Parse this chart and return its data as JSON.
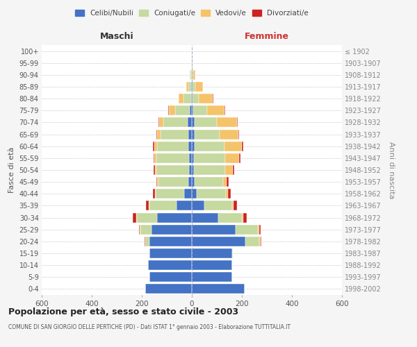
{
  "age_groups": [
    "0-4",
    "5-9",
    "10-14",
    "15-19",
    "20-24",
    "25-29",
    "30-34",
    "35-39",
    "40-44",
    "45-49",
    "50-54",
    "55-59",
    "60-64",
    "65-69",
    "70-74",
    "75-79",
    "80-84",
    "85-89",
    "90-94",
    "95-99",
    "100+"
  ],
  "birth_years": [
    "1998-2002",
    "1993-1997",
    "1988-1992",
    "1983-1987",
    "1978-1982",
    "1973-1977",
    "1968-1972",
    "1963-1967",
    "1958-1962",
    "1953-1957",
    "1948-1952",
    "1943-1947",
    "1938-1942",
    "1933-1937",
    "1928-1932",
    "1923-1927",
    "1918-1922",
    "1913-1917",
    "1908-1912",
    "1903-1907",
    "≤ 1902"
  ],
  "male": {
    "celibi": [
      185,
      170,
      175,
      170,
      170,
      160,
      140,
      60,
      30,
      14,
      12,
      12,
      14,
      15,
      18,
      8,
      4,
      2,
      1,
      0,
      0
    ],
    "coniugati": [
      0,
      0,
      0,
      0,
      15,
      45,
      80,
      110,
      115,
      120,
      130,
      130,
      125,
      110,
      95,
      60,
      30,
      12,
      4,
      1,
      0
    ],
    "vedovi": [
      0,
      0,
      0,
      0,
      2,
      2,
      2,
      2,
      2,
      4,
      5,
      8,
      12,
      14,
      18,
      25,
      20,
      8,
      2,
      0,
      0
    ],
    "divorziati": [
      0,
      0,
      0,
      0,
      3,
      5,
      14,
      10,
      8,
      5,
      5,
      4,
      4,
      3,
      2,
      2,
      0,
      0,
      0,
      0,
      0
    ]
  },
  "female": {
    "nubili": [
      210,
      160,
      160,
      160,
      215,
      175,
      105,
      50,
      20,
      10,
      8,
      8,
      10,
      10,
      10,
      6,
      3,
      2,
      1,
      0,
      0
    ],
    "coniugate": [
      0,
      0,
      0,
      5,
      55,
      90,
      95,
      110,
      115,
      115,
      125,
      125,
      120,
      100,
      90,
      55,
      25,
      12,
      4,
      1,
      0
    ],
    "vedove": [
      0,
      0,
      0,
      0,
      4,
      4,
      6,
      8,
      10,
      15,
      30,
      55,
      70,
      75,
      80,
      70,
      55,
      30,
      8,
      1,
      0
    ],
    "divorziate": [
      0,
      0,
      0,
      0,
      3,
      5,
      14,
      12,
      10,
      6,
      6,
      6,
      5,
      3,
      3,
      2,
      2,
      0,
      0,
      0,
      0
    ]
  },
  "colors": {
    "celibi": "#4472c4",
    "coniugati": "#c5d9a0",
    "vedovi": "#f5c36a",
    "divorziati": "#cc2222"
  },
  "title": "Popolazione per età, sesso e stato civile - 2003",
  "subtitle": "COMUNE DI SAN GIORGIO DELLE PERTICHE (PD) - Dati ISTAT 1° gennaio 2003 - Elaborazione TUTTITALIA.IT",
  "xlabel_left": "Maschi",
  "xlabel_right": "Femmine",
  "ylabel_left": "Fasce di età",
  "ylabel_right": "Anni di nascita",
  "xlim": 600,
  "legend_labels": [
    "Celibi/Nubili",
    "Coniugati/e",
    "Vedovi/e",
    "Divorziati/e"
  ],
  "bg_color": "#f5f5f5",
  "plot_bg_color": "#ffffff"
}
